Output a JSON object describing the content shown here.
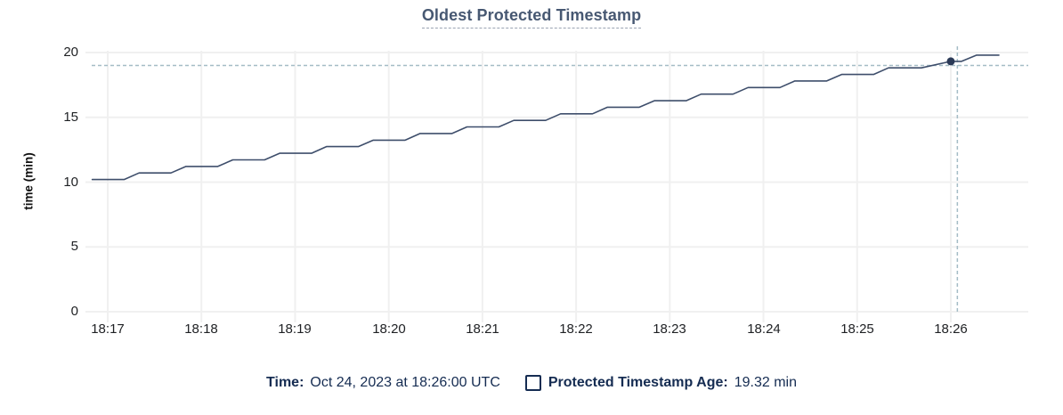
{
  "title": "Oldest Protected Timestamp",
  "colors": {
    "title": "#475872",
    "line": "#3e4e6b",
    "dot": "#2b3a57",
    "crosshair": "#a5bcc6",
    "grid": "#f0f0f0",
    "axis_text": "#1e2023",
    "legend_text": "#152c52"
  },
  "chart_data": {
    "type": "line",
    "title": "Oldest Protected Timestamp",
    "xlabel": "",
    "ylabel": "time (min)",
    "ylim": [
      0,
      20
    ],
    "yticks": [
      20,
      15,
      10,
      5,
      0
    ],
    "xticks": [
      "18:17",
      "18:18",
      "18:19",
      "18:20",
      "18:21",
      "18:22",
      "18:23",
      "18:24",
      "18:25",
      "18:26"
    ],
    "grid": true,
    "legend_position": "bottom",
    "series": [
      {
        "name": "Protected Timestamp Age",
        "unit": "min",
        "points": [
          [
            -0.165,
            10.2
          ],
          [
            0.175,
            10.2
          ],
          [
            0.335,
            10.71
          ],
          [
            0.675,
            10.71
          ],
          [
            0.835,
            11.21
          ],
          [
            1.175,
            11.21
          ],
          [
            1.335,
            11.72
          ],
          [
            1.675,
            11.72
          ],
          [
            1.835,
            12.23
          ],
          [
            2.175,
            12.23
          ],
          [
            2.335,
            12.74
          ],
          [
            2.675,
            12.74
          ],
          [
            2.835,
            13.24
          ],
          [
            3.175,
            13.24
          ],
          [
            3.335,
            13.75
          ],
          [
            3.675,
            13.75
          ],
          [
            3.835,
            14.26
          ],
          [
            4.175,
            14.26
          ],
          [
            4.335,
            14.76
          ],
          [
            4.675,
            14.76
          ],
          [
            4.835,
            15.27
          ],
          [
            5.175,
            15.27
          ],
          [
            5.335,
            15.78
          ],
          [
            5.675,
            15.78
          ],
          [
            5.835,
            16.28
          ],
          [
            6.175,
            16.28
          ],
          [
            6.335,
            16.79
          ],
          [
            6.675,
            16.79
          ],
          [
            6.835,
            17.3
          ],
          [
            7.175,
            17.3
          ],
          [
            7.335,
            17.81
          ],
          [
            7.675,
            17.81
          ],
          [
            7.835,
            18.31
          ],
          [
            8.175,
            18.31
          ],
          [
            8.335,
            18.82
          ],
          [
            8.687,
            18.82
          ],
          [
            9.0,
            19.32
          ],
          [
            9.114,
            19.32
          ],
          [
            9.276,
            19.8
          ],
          [
            9.513,
            19.8
          ]
        ]
      }
    ],
    "highlight": {
      "time": "18:26:00",
      "t": 9.0,
      "value": 19.32
    },
    "crosshair": {
      "t": 9.07,
      "value": 19.0
    }
  },
  "legend": {
    "time_label": "Time:",
    "time_value": "Oct 24, 2023 at 18:26:00 UTC",
    "series_label": "Protected Timestamp Age:",
    "series_value": "19.32 min"
  }
}
